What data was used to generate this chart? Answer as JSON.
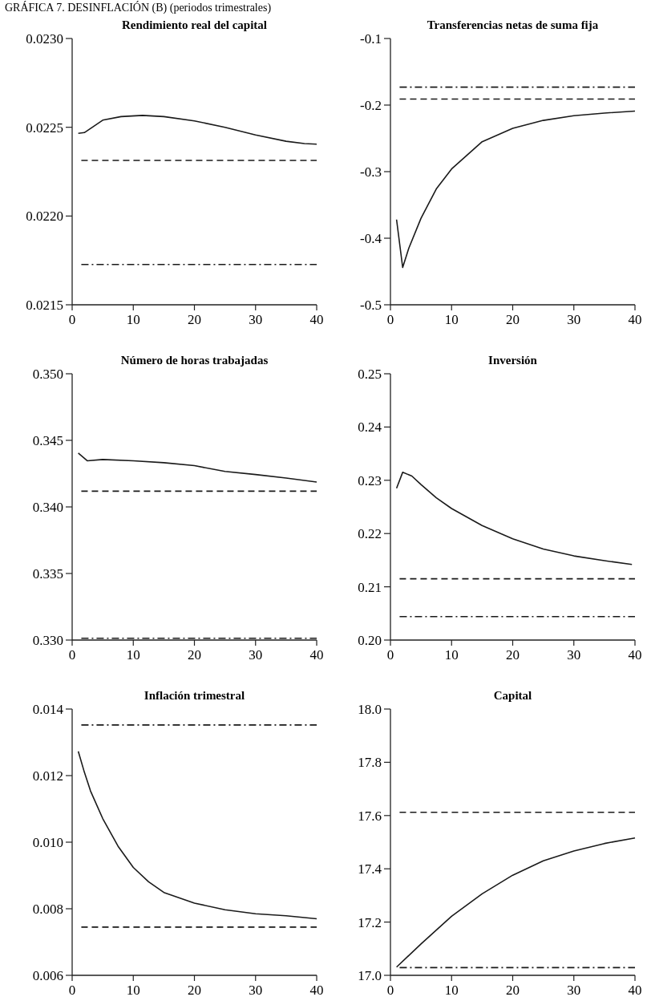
{
  "chart_data": [
    {
      "type": "line",
      "title": "Rendimiento real del capital",
      "annotations": [
        "GRÁFICA 7. DESINFLACIÓN (B) (periodos trimestrales)"
      ],
      "xlim": [
        0,
        40
      ],
      "xticks": [
        0,
        10,
        20,
        30,
        40
      ],
      "ylim": [
        0.0215,
        0.023
      ],
      "yticks": [
        0.0215,
        {
          "value": 0.022,
          "label": "0.0220"
        },
        0.0225,
        {
          "value": 0.023,
          "label": "0.0230"
        }
      ],
      "grid": false,
      "series": [
        {
          "color": "#1a1a1a",
          "line_style": "solid",
          "x": [
            1,
            2,
            5,
            8,
            11.5,
            15,
            20,
            25,
            30,
            35,
            38,
            40
          ],
          "values": [
            0.022466,
            0.02247,
            0.02254,
            0.02256,
            0.022567,
            0.02256,
            0.022536,
            0.0225,
            0.022457,
            0.022421,
            0.022408,
            0.022405
          ]
        },
        {
          "color": "#1a1a1a",
          "line_style": "dashed",
          "x": [
            1.5,
            40
          ],
          "values": [
            0.022313,
            0.022313
          ]
        },
        {
          "color": "#1a1a1a",
          "line_style": "dashdot",
          "x": [
            1.5,
            40
          ],
          "values": [
            0.021727,
            0.021727
          ]
        }
      ]
    },
    {
      "type": "line",
      "title": "Transferencias netas de suma fija",
      "xlim": [
        0,
        40
      ],
      "xticks": [
        0,
        10,
        20,
        30,
        40
      ],
      "ylim": [
        -0.5,
        -0.1
      ],
      "yticks": [
        -0.5,
        -0.4,
        -0.3,
        -0.2,
        -0.1
      ],
      "grid": false,
      "series": [
        {
          "color": "#1a1a1a",
          "line_style": "solid",
          "x": [
            1,
            2,
            3,
            5,
            7.5,
            10,
            15,
            20,
            25,
            30,
            35,
            40
          ],
          "values": [
            -0.372,
            -0.444,
            -0.415,
            -0.37,
            -0.326,
            -0.296,
            -0.255,
            -0.235,
            -0.223,
            -0.216,
            -0.212,
            -0.209
          ]
        },
        {
          "color": "#1a1a1a",
          "line_style": "dashed",
          "x": [
            1.5,
            40
          ],
          "values": [
            -0.191,
            -0.191
          ]
        },
        {
          "color": "#1a1a1a",
          "line_style": "dashdot",
          "x": [
            1.5,
            40
          ],
          "values": [
            -0.173,
            -0.173
          ]
        }
      ]
    },
    {
      "type": "line",
      "title": "Número de horas trabajadas",
      "xlim": [
        0,
        40
      ],
      "xticks": [
        0,
        10,
        20,
        30,
        40
      ],
      "ylim": [
        0.33,
        0.35
      ],
      "yticks": [
        {
          "value": 0.33,
          "label": "0.330"
        },
        0.335,
        {
          "value": 0.34,
          "label": "0.340"
        },
        0.345,
        {
          "value": 0.35,
          "label": "0.350"
        }
      ],
      "grid": false,
      "series": [
        {
          "color": "#1a1a1a",
          "line_style": "solid",
          "x": [
            1,
            2.5,
            5,
            10,
            15,
            20,
            25,
            30,
            35,
            40
          ],
          "values": [
            0.34405,
            0.34346,
            0.34356,
            0.34346,
            0.34332,
            0.3431,
            0.34267,
            0.34243,
            0.34217,
            0.34187
          ]
        },
        {
          "color": "#1a1a1a",
          "line_style": "dashed",
          "x": [
            1.5,
            40
          ],
          "values": [
            0.34118,
            0.34118
          ]
        },
        {
          "color": "#1a1a1a",
          "line_style": "dashdot",
          "x": [
            1.5,
            40
          ],
          "values": [
            0.33014,
            0.33014
          ]
        }
      ]
    },
    {
      "type": "line",
      "title": "Inversión",
      "xlim": [
        0,
        40
      ],
      "xticks": [
        0,
        10,
        20,
        30,
        40
      ],
      "ylim": [
        0.2,
        0.25
      ],
      "yticks": [
        {
          "value": 0.2,
          "label": "0.20"
        },
        0.21,
        0.22,
        0.23,
        0.24,
        0.25
      ],
      "grid": false,
      "series": [
        {
          "color": "#1a1a1a",
          "line_style": "solid",
          "x": [
            1,
            2,
            3.5,
            5,
            7.5,
            10,
            15,
            20,
            25,
            30,
            35,
            39.5
          ],
          "values": [
            0.2285,
            0.2315,
            0.2308,
            0.2292,
            0.2267,
            0.2247,
            0.2215,
            0.219,
            0.2171,
            0.2158,
            0.2149,
            0.2142
          ]
        },
        {
          "color": "#1a1a1a",
          "line_style": "dashed",
          "x": [
            1.5,
            40
          ],
          "values": [
            0.2115,
            0.2115
          ]
        },
        {
          "color": "#1a1a1a",
          "line_style": "dashdot",
          "x": [
            1.5,
            40
          ],
          "values": [
            0.2044,
            0.2044
          ]
        }
      ]
    },
    {
      "type": "line",
      "title": "Inflación trimestral",
      "xlim": [
        0,
        40
      ],
      "xticks": [
        0,
        10,
        20,
        30,
        40
      ],
      "ylim": [
        0.006,
        0.014
      ],
      "yticks": [
        0.006,
        0.008,
        {
          "value": 0.01,
          "label": "0.010"
        },
        0.012,
        0.014
      ],
      "grid": false,
      "series": [
        {
          "color": "#1a1a1a",
          "line_style": "solid",
          "x": [
            1,
            2,
            3,
            5,
            7.5,
            10,
            12.5,
            15,
            20,
            25,
            30,
            35,
            40
          ],
          "values": [
            0.01273,
            0.0121,
            0.01154,
            0.01071,
            0.00988,
            0.00924,
            0.00881,
            0.00849,
            0.00817,
            0.00797,
            0.00785,
            0.00779,
            0.0077
          ]
        },
        {
          "color": "#1a1a1a",
          "line_style": "dashed",
          "x": [
            1.5,
            40
          ],
          "values": [
            0.00745,
            0.00745
          ]
        },
        {
          "color": "#1a1a1a",
          "line_style": "dashdot",
          "x": [
            1.5,
            40
          ],
          "values": [
            0.01352,
            0.01352
          ]
        }
      ]
    },
    {
      "type": "line",
      "title": "Capital",
      "xlim": [
        0,
        40
      ],
      "xticks": [
        0,
        10,
        20,
        30,
        40
      ],
      "ylim": [
        17,
        18
      ],
      "yticks": [
        {
          "value": 17,
          "label": "17.0"
        },
        17.2,
        17.4,
        17.6,
        17.8,
        {
          "value": 18,
          "label": "18.0"
        }
      ],
      "grid": false,
      "series": [
        {
          "color": "#1a1a1a",
          "line_style": "solid",
          "x": [
            1,
            5,
            10,
            15,
            20,
            25,
            30,
            35,
            40
          ],
          "values": [
            17.031,
            17.118,
            17.222,
            17.306,
            17.376,
            17.43,
            17.467,
            17.495,
            17.516
          ]
        },
        {
          "color": "#1a1a1a",
          "line_style": "dashed",
          "x": [
            1.5,
            40
          ],
          "values": [
            17.612,
            17.612
          ]
        },
        {
          "color": "#1a1a1a",
          "line_style": "dashdot",
          "x": [
            1.5,
            40
          ],
          "values": [
            17.029,
            17.029
          ]
        }
      ]
    }
  ]
}
